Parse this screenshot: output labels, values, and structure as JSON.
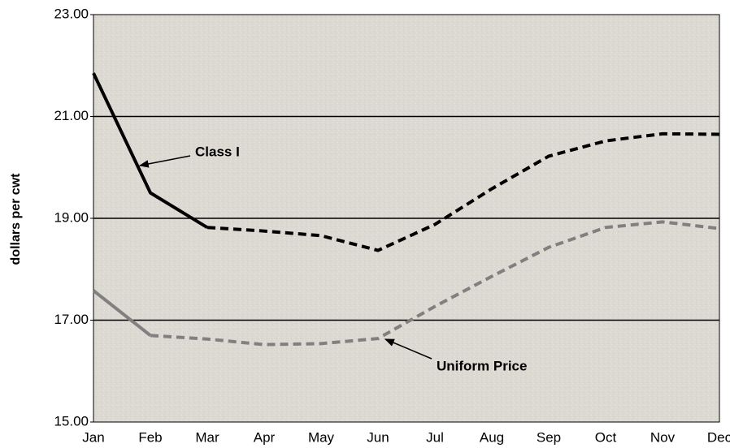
{
  "chart_data": {
    "type": "line",
    "ylabel": "dollars per cwt",
    "categories": [
      "Jan",
      "Feb",
      "Mar",
      "Apr",
      "May",
      "Jun",
      "Jul",
      "Aug",
      "Sep",
      "Oct",
      "Nov",
      "Dec"
    ],
    "series": [
      {
        "name": "Class I",
        "color": "#000000",
        "solid_until": "Mar",
        "values": [
          21.85,
          19.5,
          18.82,
          18.75,
          18.66,
          18.37,
          18.88,
          19.58,
          20.22,
          20.52,
          20.66,
          20.65
        ]
      },
      {
        "name": "Uniform Price",
        "color": "#808080",
        "solid_until": "Feb",
        "values": [
          17.58,
          16.7,
          16.63,
          16.52,
          16.54,
          16.64,
          17.27,
          17.86,
          18.43,
          18.82,
          18.93,
          18.8
        ]
      }
    ],
    "ylim": [
      15,
      23
    ],
    "yticks": [
      {
        "value": 15,
        "label": "15.00"
      },
      {
        "value": 17,
        "label": "17.00"
      },
      {
        "value": 19,
        "label": "19.00"
      },
      {
        "value": 21,
        "label": "21.00"
      },
      {
        "value": 23,
        "label": "23.00"
      }
    ],
    "grid": true
  }
}
